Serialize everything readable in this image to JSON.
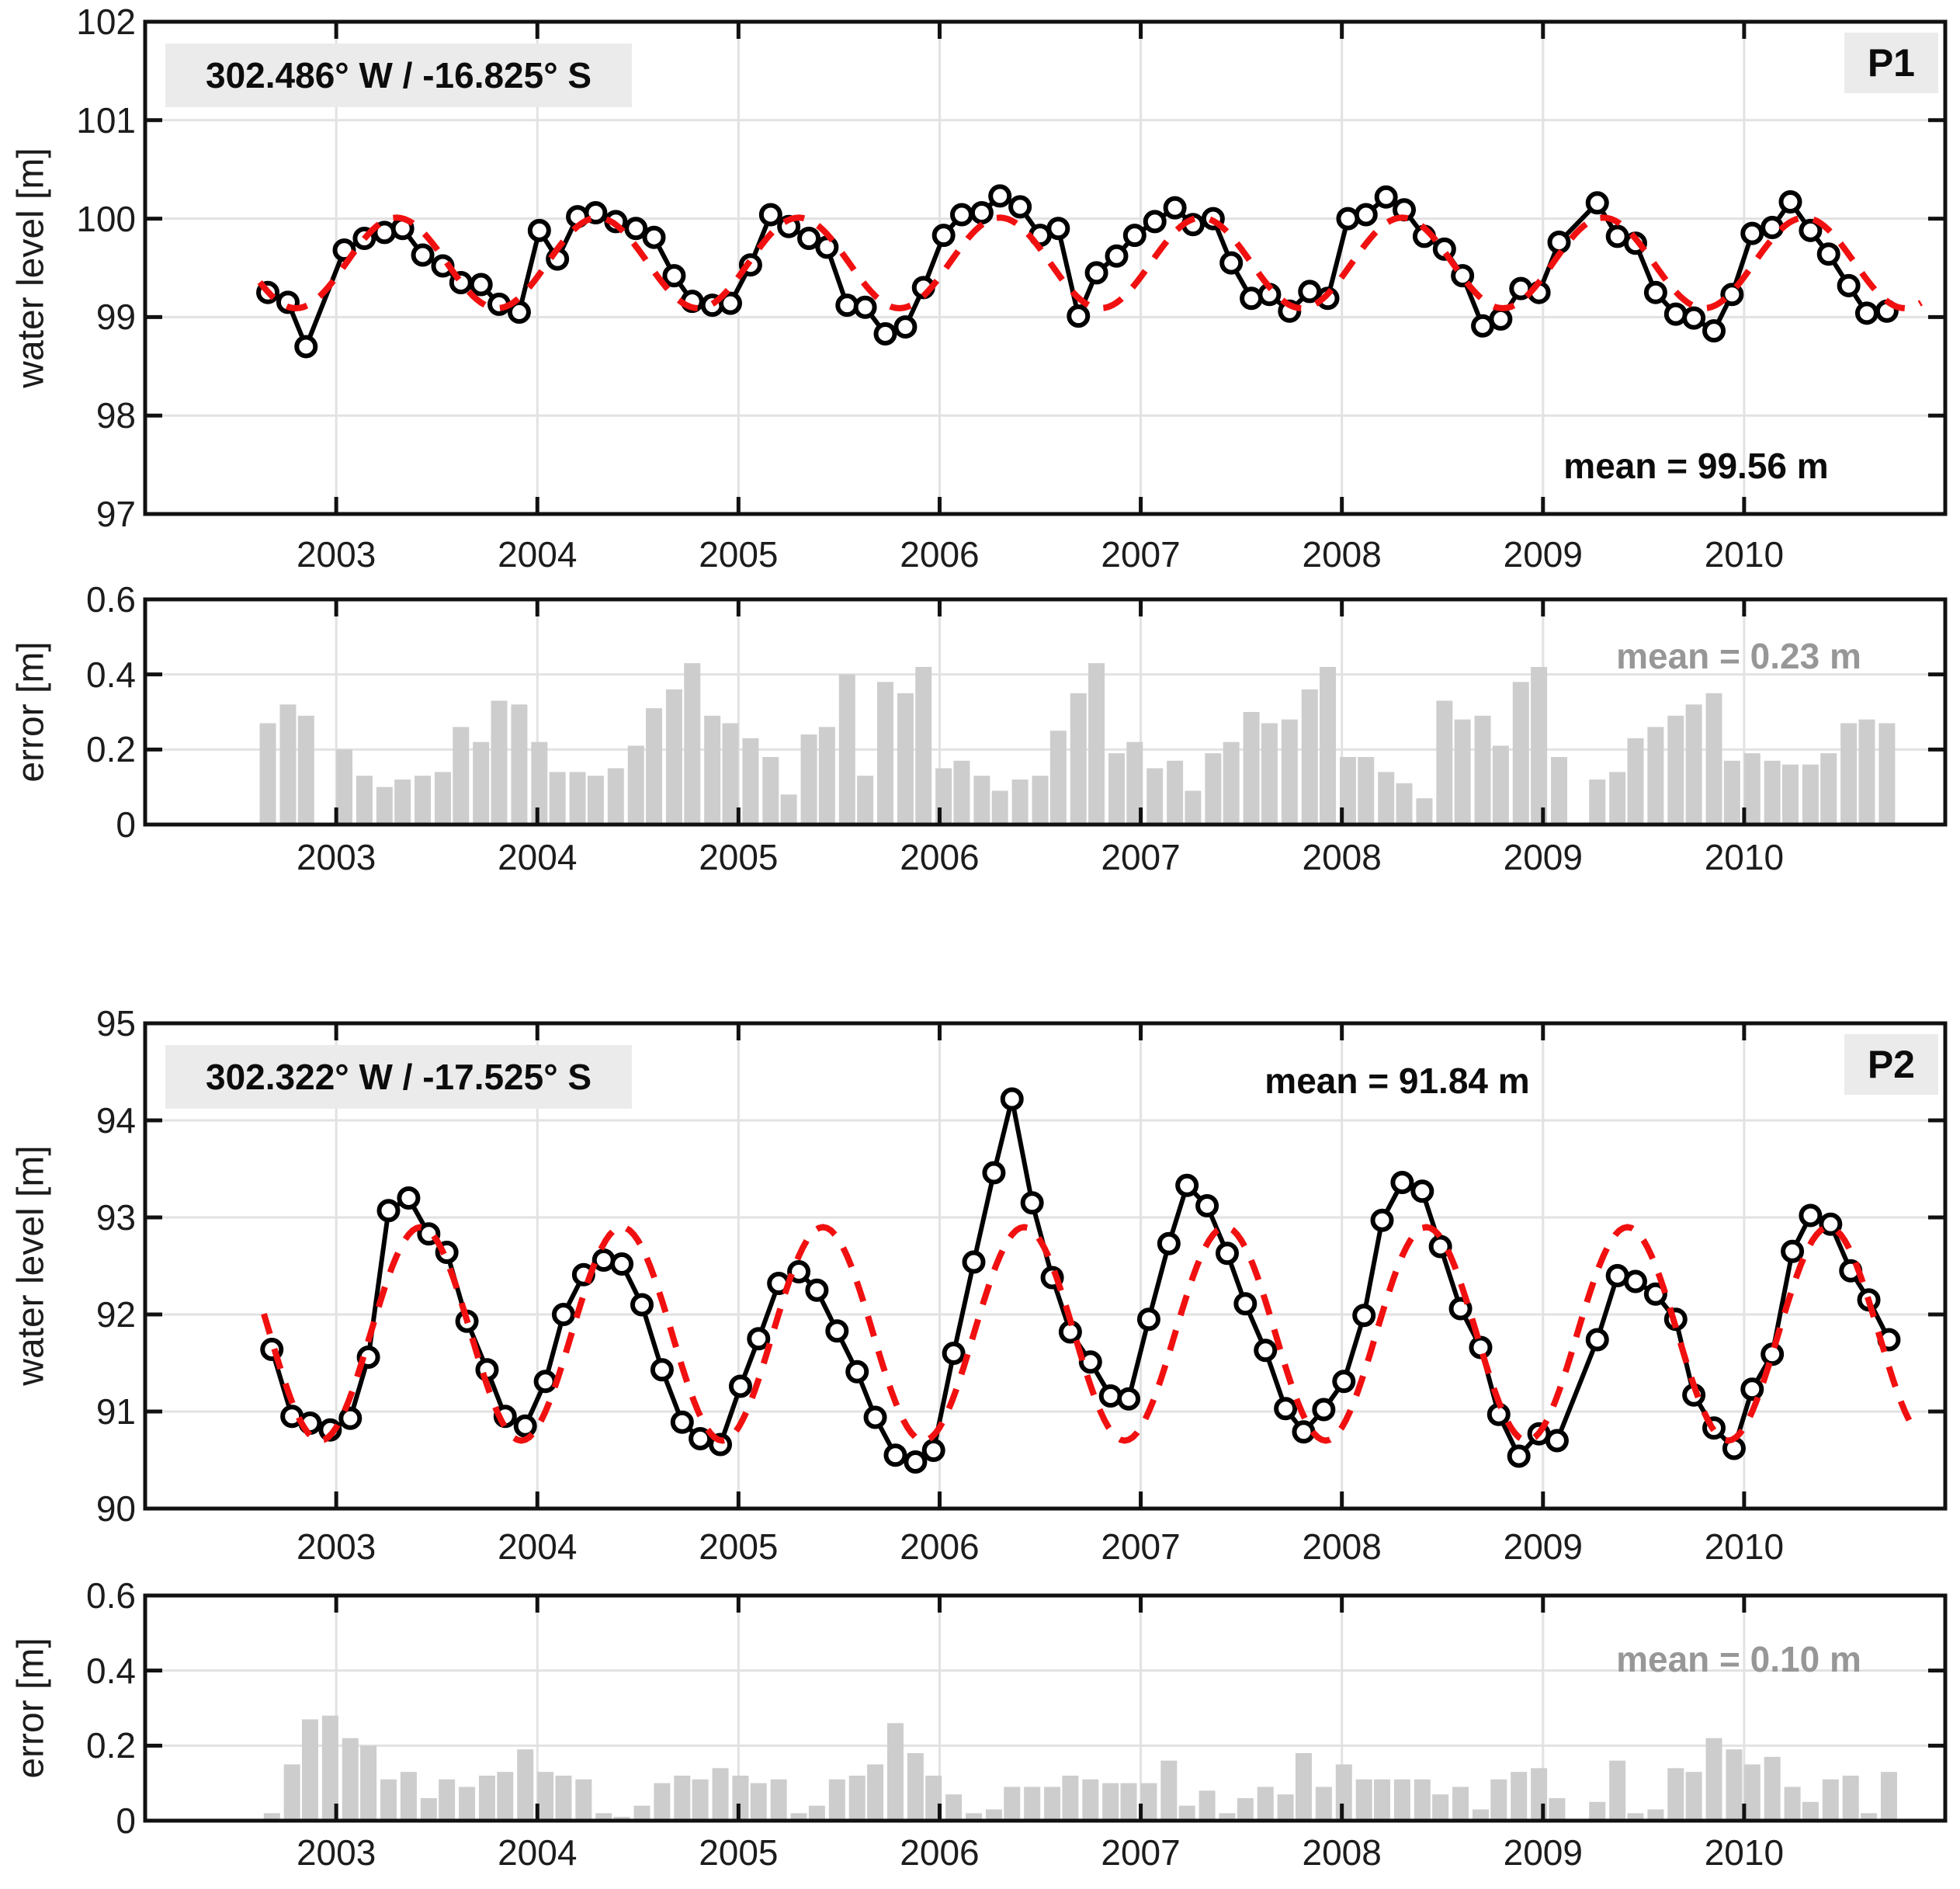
{
  "panels": {
    "p1": {
      "badge": "P1",
      "coord_label": "302.486° W / -16.825° S",
      "mean_label": "mean = 99.56 m",
      "ylabel": "water level [m]"
    },
    "p1_error": {
      "ylabel": "error [m]",
      "mean_label": "mean = 0.23 m"
    },
    "p2": {
      "badge": "P2",
      "coord_label": "302.322° W / -17.525° S",
      "mean_label": "mean = 91.84 m",
      "ylabel": "water level [m]"
    },
    "p2_error": {
      "ylabel": "error [m]",
      "mean_label": "mean = 0.10 m"
    }
  },
  "colors": {
    "data_line": "#000000",
    "marker_fill": "#ffffff",
    "fit_line": "#f11010",
    "bar_fill": "#cdcdcd",
    "grid": "#e2e2e2",
    "axis": "#111111",
    "tick_text": "#1c1c1c",
    "mean_gray": "#979797",
    "box_bg": "#ebebeb"
  },
  "chart_data": [
    {
      "id": "p1",
      "type": "line",
      "ylabel": "water level [m]",
      "ylim": [
        97,
        102
      ],
      "yticks": [
        97,
        98,
        99,
        100,
        101,
        102
      ],
      "ytick_labels": [
        "97",
        "98",
        "99",
        "100",
        "101",
        "102"
      ],
      "xlim": [
        2002.05,
        2011.0
      ],
      "xticks": [
        2003,
        2004,
        2005,
        2006,
        2007,
        2008,
        2009,
        2010
      ],
      "xtick_labels": [
        "2003",
        "2004",
        "2005",
        "2006",
        "2007",
        "2008",
        "2009",
        "2010"
      ],
      "x": [
        2002.66,
        2002.76,
        2002.85,
        2003.04,
        2003.14,
        2003.24,
        2003.33,
        2003.43,
        2003.53,
        2003.62,
        2003.72,
        2003.81,
        2003.91,
        2004.01,
        2004.1,
        2004.2,
        2004.29,
        2004.39,
        2004.49,
        2004.58,
        2004.68,
        2004.77,
        2004.87,
        2004.96,
        2005.06,
        2005.16,
        2005.25,
        2005.35,
        2005.44,
        2005.54,
        2005.63,
        2005.73,
        2005.83,
        2005.92,
        2006.02,
        2006.11,
        2006.21,
        2006.3,
        2006.4,
        2006.5,
        2006.59,
        2006.69,
        2006.78,
        2006.88,
        2006.97,
        2007.07,
        2007.17,
        2007.26,
        2007.36,
        2007.45,
        2007.55,
        2007.64,
        2007.74,
        2007.84,
        2007.93,
        2008.03,
        2008.12,
        2008.22,
        2008.31,
        2008.41,
        2008.51,
        2008.6,
        2008.7,
        2008.79,
        2008.89,
        2008.98,
        2009.08,
        2009.27,
        2009.37,
        2009.46,
        2009.56,
        2009.66,
        2009.75,
        2009.85,
        2009.94,
        2010.04,
        2010.14,
        2010.23,
        2010.33,
        2010.42,
        2010.52,
        2010.61,
        2010.71
      ],
      "y": [
        99.25,
        99.15,
        98.7,
        99.68,
        99.8,
        99.86,
        99.9,
        99.63,
        99.52,
        99.35,
        99.33,
        99.13,
        99.05,
        99.88,
        99.59,
        100.02,
        100.06,
        99.97,
        99.9,
        99.81,
        99.42,
        99.16,
        99.12,
        99.14,
        99.53,
        100.04,
        99.92,
        99.8,
        99.71,
        99.12,
        99.1,
        98.83,
        98.9,
        99.3,
        99.83,
        100.04,
        100.06,
        100.23,
        100.12,
        99.83,
        99.9,
        99.01,
        99.45,
        99.62,
        99.83,
        99.97,
        100.11,
        99.94,
        100.0,
        99.55,
        99.19,
        99.23,
        99.06,
        99.26,
        99.19,
        100.0,
        100.04,
        100.22,
        100.09,
        99.82,
        99.69,
        99.42,
        98.91,
        98.98,
        99.29,
        99.25,
        99.76,
        100.16,
        99.82,
        99.75,
        99.25,
        99.03,
        98.99,
        98.86,
        99.23,
        99.85,
        99.91,
        100.17,
        99.88,
        99.64,
        99.32,
        99.04,
        99.06
      ],
      "fit": {
        "mean": 99.55,
        "amplitude": 0.46,
        "peak_time": 2003.3,
        "t_start": 2002.62,
        "t_end": 2010.88
      }
    },
    {
      "id": "p1_error",
      "type": "bar",
      "ylabel": "error [m]",
      "ylim": [
        0,
        0.6
      ],
      "yticks": [
        0,
        0.2,
        0.4,
        0.6
      ],
      "ytick_labels": [
        "0",
        "0.2",
        "0.4",
        "0.6"
      ],
      "xlim": [
        2002.05,
        2011.0
      ],
      "xticks": [
        2003,
        2004,
        2005,
        2006,
        2007,
        2008,
        2009,
        2010
      ],
      "xtick_labels": [
        "2003",
        "2004",
        "2005",
        "2006",
        "2007",
        "2008",
        "2009",
        "2010"
      ],
      "x": [
        2002.66,
        2002.76,
        2002.85,
        2003.04,
        2003.14,
        2003.24,
        2003.33,
        2003.43,
        2003.53,
        2003.62,
        2003.72,
        2003.81,
        2003.91,
        2004.01,
        2004.1,
        2004.2,
        2004.29,
        2004.39,
        2004.49,
        2004.58,
        2004.68,
        2004.77,
        2004.87,
        2004.96,
        2005.06,
        2005.16,
        2005.25,
        2005.35,
        2005.44,
        2005.54,
        2005.63,
        2005.73,
        2005.83,
        2005.92,
        2006.02,
        2006.11,
        2006.21,
        2006.3,
        2006.4,
        2006.5,
        2006.59,
        2006.69,
        2006.78,
        2006.88,
        2006.97,
        2007.07,
        2007.17,
        2007.26,
        2007.36,
        2007.45,
        2007.55,
        2007.64,
        2007.74,
        2007.84,
        2007.93,
        2008.03,
        2008.12,
        2008.22,
        2008.31,
        2008.41,
        2008.51,
        2008.6,
        2008.7,
        2008.79,
        2008.89,
        2008.98,
        2009.08,
        2009.27,
        2009.37,
        2009.46,
        2009.56,
        2009.66,
        2009.75,
        2009.85,
        2009.94,
        2010.04,
        2010.14,
        2010.23,
        2010.33,
        2010.42,
        2010.52,
        2010.61,
        2010.71
      ],
      "values": [
        0.27,
        0.32,
        0.29,
        0.2,
        0.13,
        0.1,
        0.12,
        0.13,
        0.14,
        0.26,
        0.22,
        0.33,
        0.32,
        0.22,
        0.14,
        0.14,
        0.13,
        0.15,
        0.21,
        0.31,
        0.36,
        0.43,
        0.29,
        0.27,
        0.23,
        0.18,
        0.08,
        0.24,
        0.26,
        0.4,
        0.13,
        0.38,
        0.35,
        0.42,
        0.15,
        0.17,
        0.13,
        0.09,
        0.12,
        0.13,
        0.25,
        0.35,
        0.43,
        0.19,
        0.22,
        0.15,
        0.17,
        0.09,
        0.19,
        0.22,
        0.3,
        0.27,
        0.28,
        0.36,
        0.42,
        0.18,
        0.18,
        0.14,
        0.11,
        0.07,
        0.33,
        0.28,
        0.29,
        0.21,
        0.38,
        0.42,
        0.18,
        0.12,
        0.14,
        0.23,
        0.26,
        0.29,
        0.32,
        0.35,
        0.17,
        0.19,
        0.17,
        0.16,
        0.16,
        0.19,
        0.27,
        0.28,
        0.27
      ]
    },
    {
      "id": "p2",
      "type": "line",
      "ylabel": "water level [m]",
      "ylim": [
        90,
        95
      ],
      "yticks": [
        90,
        91,
        92,
        93,
        94,
        95
      ],
      "ytick_labels": [
        "90",
        "91",
        "92",
        "93",
        "94",
        "95"
      ],
      "xlim": [
        2002.05,
        2011.0
      ],
      "xticks": [
        2003,
        2004,
        2005,
        2006,
        2007,
        2008,
        2009,
        2010
      ],
      "xtick_labels": [
        "2003",
        "2004",
        "2005",
        "2006",
        "2007",
        "2008",
        "2009",
        "2010"
      ],
      "x": [
        2002.68,
        2002.78,
        2002.87,
        2002.97,
        2003.07,
        2003.16,
        2003.26,
        2003.36,
        2003.46,
        2003.55,
        2003.65,
        2003.75,
        2003.84,
        2003.94,
        2004.04,
        2004.13,
        2004.23,
        2004.33,
        2004.42,
        2004.52,
        2004.62,
        2004.72,
        2004.81,
        2004.91,
        2005.01,
        2005.1,
        2005.2,
        2005.3,
        2005.39,
        2005.49,
        2005.59,
        2005.68,
        2005.78,
        2005.88,
        2005.97,
        2006.07,
        2006.17,
        2006.27,
        2006.36,
        2006.46,
        2006.56,
        2006.65,
        2006.75,
        2006.85,
        2006.94,
        2007.04,
        2007.14,
        2007.23,
        2007.33,
        2007.43,
        2007.52,
        2007.62,
        2007.72,
        2007.81,
        2007.91,
        2008.01,
        2008.11,
        2008.2,
        2008.3,
        2008.4,
        2008.49,
        2008.59,
        2008.69,
        2008.78,
        2008.88,
        2008.98,
        2009.07,
        2009.27,
        2009.37,
        2009.46,
        2009.56,
        2009.66,
        2009.75,
        2009.85,
        2009.95,
        2010.04,
        2010.14,
        2010.24,
        2010.33,
        2010.43,
        2010.53,
        2010.62,
        2010.72
      ],
      "y": [
        91.64,
        90.95,
        90.88,
        90.81,
        90.93,
        91.56,
        93.07,
        93.2,
        92.83,
        92.64,
        91.93,
        91.43,
        90.95,
        90.85,
        91.31,
        92.0,
        92.41,
        92.56,
        92.52,
        92.1,
        91.43,
        90.89,
        90.72,
        90.66,
        91.26,
        91.75,
        92.32,
        92.44,
        92.25,
        91.83,
        91.41,
        90.94,
        90.55,
        90.48,
        90.6,
        91.6,
        92.54,
        93.46,
        94.22,
        93.15,
        92.38,
        91.82,
        91.51,
        91.16,
        91.13,
        91.95,
        92.73,
        93.33,
        93.12,
        92.63,
        92.11,
        91.63,
        91.03,
        90.79,
        91.02,
        91.31,
        91.99,
        92.97,
        93.36,
        93.27,
        92.7,
        92.06,
        91.66,
        90.97,
        90.54,
        90.77,
        90.7,
        91.74,
        92.4,
        92.34,
        92.21,
        91.95,
        91.17,
        90.83,
        90.62,
        91.23,
        91.59,
        92.65,
        93.02,
        92.93,
        92.45,
        92.15,
        91.74
      ],
      "fit": {
        "mean": 91.8,
        "amplitude": 1.1,
        "peak_time": 2003.42,
        "t_start": 2002.64,
        "t_end": 2010.82
      }
    },
    {
      "id": "p2_error",
      "type": "bar",
      "ylabel": "error [m]",
      "ylim": [
        0,
        0.6
      ],
      "yticks": [
        0,
        0.2,
        0.4,
        0.6
      ],
      "ytick_labels": [
        "0",
        "0.2",
        "0.4",
        "0.6"
      ],
      "xlim": [
        2002.05,
        2011.0
      ],
      "xticks": [
        2003,
        2004,
        2005,
        2006,
        2007,
        2008,
        2009,
        2010
      ],
      "xtick_labels": [
        "2003",
        "2004",
        "2005",
        "2006",
        "2007",
        "2008",
        "2009",
        "2010"
      ],
      "x": [
        2002.68,
        2002.78,
        2002.87,
        2002.97,
        2003.07,
        2003.16,
        2003.26,
        2003.36,
        2003.46,
        2003.55,
        2003.65,
        2003.75,
        2003.84,
        2003.94,
        2004.04,
        2004.13,
        2004.23,
        2004.33,
        2004.42,
        2004.52,
        2004.62,
        2004.72,
        2004.81,
        2004.91,
        2005.01,
        2005.1,
        2005.2,
        2005.3,
        2005.39,
        2005.49,
        2005.59,
        2005.68,
        2005.78,
        2005.88,
        2005.97,
        2006.07,
        2006.17,
        2006.27,
        2006.36,
        2006.46,
        2006.56,
        2006.65,
        2006.75,
        2006.85,
        2006.94,
        2007.04,
        2007.14,
        2007.23,
        2007.33,
        2007.43,
        2007.52,
        2007.62,
        2007.72,
        2007.81,
        2007.91,
        2008.01,
        2008.11,
        2008.2,
        2008.3,
        2008.4,
        2008.49,
        2008.59,
        2008.69,
        2008.78,
        2008.88,
        2008.98,
        2009.07,
        2009.27,
        2009.37,
        2009.46,
        2009.56,
        2009.66,
        2009.75,
        2009.85,
        2009.95,
        2010.04,
        2010.14,
        2010.24,
        2010.33,
        2010.43,
        2010.53,
        2010.62,
        2010.72
      ],
      "values": [
        0.02,
        0.15,
        0.27,
        0.28,
        0.22,
        0.2,
        0.11,
        0.13,
        0.06,
        0.11,
        0.09,
        0.12,
        0.13,
        0.19,
        0.13,
        0.12,
        0.11,
        0.02,
        0.01,
        0.04,
        0.1,
        0.12,
        0.11,
        0.14,
        0.12,
        0.1,
        0.11,
        0.02,
        0.04,
        0.11,
        0.12,
        0.15,
        0.26,
        0.18,
        0.12,
        0.07,
        0.02,
        0.03,
        0.09,
        0.09,
        0.09,
        0.12,
        0.11,
        0.1,
        0.1,
        0.1,
        0.16,
        0.04,
        0.08,
        0.02,
        0.06,
        0.09,
        0.07,
        0.18,
        0.09,
        0.15,
        0.11,
        0.11,
        0.11,
        0.11,
        0.07,
        0.09,
        0.03,
        0.11,
        0.13,
        0.14,
        0.06,
        0.05,
        0.16,
        0.02,
        0.03,
        0.14,
        0.13,
        0.22,
        0.19,
        0.15,
        0.17,
        0.09,
        0.05,
        0.11,
        0.12,
        0.02,
        0.13
      ]
    }
  ]
}
